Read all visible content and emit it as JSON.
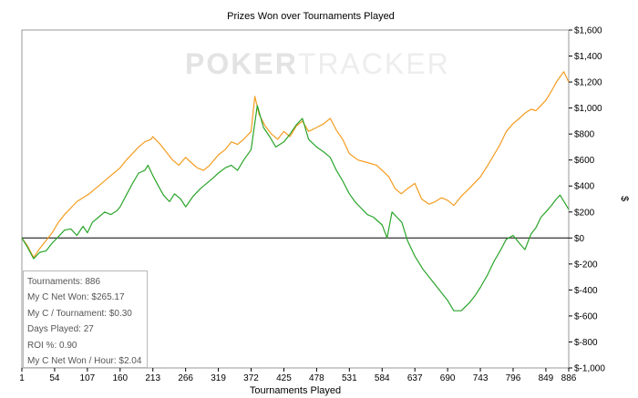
{
  "watermark": {
    "part1": "POKER",
    "part2": "TRACKER"
  },
  "chart_data": {
    "type": "line",
    "title": "Prizes Won over Tournaments Played",
    "xlabel": "Tournaments Played",
    "ylabel": "$",
    "xlim": [
      1,
      886
    ],
    "ylim": [
      -1000,
      1600
    ],
    "x_ticks": [
      1,
      54,
      107,
      160,
      213,
      266,
      319,
      372,
      425,
      478,
      531,
      584,
      637,
      690,
      743,
      796,
      849,
      886
    ],
    "y_ticks": [
      -1000,
      -800,
      -600,
      -400,
      -200,
      0,
      200,
      400,
      600,
      800,
      1000,
      1200,
      1400,
      1600
    ],
    "y_tick_labels": [
      "$-1,000",
      "$-800",
      "$-600",
      "$-400",
      "$-200",
      "$0",
      "$200",
      "$400",
      "$600",
      "$800",
      "$1,000",
      "$1,200",
      "$1,400",
      "$1,600"
    ],
    "grid": false,
    "series": [
      {
        "color": "#f39c1f",
        "points": [
          [
            1,
            0
          ],
          [
            10,
            -60
          ],
          [
            20,
            -150
          ],
          [
            30,
            -80
          ],
          [
            40,
            -20
          ],
          [
            50,
            40
          ],
          [
            60,
            120
          ],
          [
            70,
            180
          ],
          [
            80,
            230
          ],
          [
            90,
            280
          ],
          [
            100,
            310
          ],
          [
            110,
            340
          ],
          [
            120,
            380
          ],
          [
            130,
            420
          ],
          [
            140,
            460
          ],
          [
            150,
            500
          ],
          [
            160,
            540
          ],
          [
            170,
            600
          ],
          [
            180,
            650
          ],
          [
            190,
            700
          ],
          [
            200,
            740
          ],
          [
            210,
            760
          ],
          [
            213,
            780
          ],
          [
            225,
            720
          ],
          [
            235,
            660
          ],
          [
            245,
            600
          ],
          [
            255,
            560
          ],
          [
            266,
            620
          ],
          [
            275,
            580
          ],
          [
            285,
            540
          ],
          [
            295,
            520
          ],
          [
            305,
            560
          ],
          [
            319,
            640
          ],
          [
            330,
            680
          ],
          [
            340,
            740
          ],
          [
            350,
            720
          ],
          [
            360,
            760
          ],
          [
            372,
            820
          ],
          [
            378,
            1090
          ],
          [
            385,
            950
          ],
          [
            395,
            860
          ],
          [
            405,
            800
          ],
          [
            415,
            760
          ],
          [
            425,
            820
          ],
          [
            435,
            780
          ],
          [
            445,
            860
          ],
          [
            455,
            900
          ],
          [
            465,
            820
          ],
          [
            478,
            850
          ],
          [
            490,
            880
          ],
          [
            500,
            920
          ],
          [
            510,
            830
          ],
          [
            520,
            760
          ],
          [
            531,
            650
          ],
          [
            545,
            600
          ],
          [
            560,
            580
          ],
          [
            575,
            560
          ],
          [
            584,
            520
          ],
          [
            595,
            470
          ],
          [
            605,
            380
          ],
          [
            615,
            340
          ],
          [
            625,
            380
          ],
          [
            637,
            420
          ],
          [
            648,
            300
          ],
          [
            660,
            260
          ],
          [
            670,
            280
          ],
          [
            680,
            310
          ],
          [
            690,
            290
          ],
          [
            700,
            250
          ],
          [
            712,
            320
          ],
          [
            725,
            380
          ],
          [
            743,
            470
          ],
          [
            755,
            560
          ],
          [
            765,
            640
          ],
          [
            775,
            720
          ],
          [
            785,
            820
          ],
          [
            796,
            880
          ],
          [
            806,
            920
          ],
          [
            815,
            960
          ],
          [
            825,
            990
          ],
          [
            833,
            980
          ],
          [
            841,
            1020
          ],
          [
            849,
            1060
          ],
          [
            858,
            1130
          ],
          [
            866,
            1200
          ],
          [
            872,
            1240
          ],
          [
            878,
            1280
          ],
          [
            886,
            1200
          ]
        ]
      },
      {
        "color": "#2aa42a",
        "points": [
          [
            1,
            0
          ],
          [
            10,
            -70
          ],
          [
            20,
            -160
          ],
          [
            30,
            -110
          ],
          [
            40,
            -100
          ],
          [
            50,
            -40
          ],
          [
            60,
            10
          ],
          [
            70,
            60
          ],
          [
            80,
            70
          ],
          [
            90,
            20
          ],
          [
            100,
            90
          ],
          [
            107,
            40
          ],
          [
            115,
            120
          ],
          [
            125,
            160
          ],
          [
            135,
            200
          ],
          [
            145,
            180
          ],
          [
            155,
            210
          ],
          [
            160,
            240
          ],
          [
            170,
            330
          ],
          [
            180,
            420
          ],
          [
            190,
            500
          ],
          [
            200,
            520
          ],
          [
            205,
            560
          ],
          [
            213,
            480
          ],
          [
            222,
            400
          ],
          [
            230,
            330
          ],
          [
            240,
            280
          ],
          [
            248,
            340
          ],
          [
            258,
            300
          ],
          [
            266,
            240
          ],
          [
            278,
            320
          ],
          [
            290,
            380
          ],
          [
            300,
            420
          ],
          [
            310,
            460
          ],
          [
            319,
            500
          ],
          [
            330,
            540
          ],
          [
            340,
            560
          ],
          [
            350,
            520
          ],
          [
            360,
            600
          ],
          [
            372,
            680
          ],
          [
            382,
            1020
          ],
          [
            392,
            850
          ],
          [
            402,
            780
          ],
          [
            412,
            700
          ],
          [
            425,
            740
          ],
          [
            435,
            800
          ],
          [
            445,
            870
          ],
          [
            455,
            920
          ],
          [
            465,
            760
          ],
          [
            478,
            700
          ],
          [
            490,
            660
          ],
          [
            500,
            620
          ],
          [
            510,
            520
          ],
          [
            520,
            440
          ],
          [
            531,
            340
          ],
          [
            540,
            280
          ],
          [
            550,
            230
          ],
          [
            560,
            180
          ],
          [
            570,
            160
          ],
          [
            584,
            100
          ],
          [
            592,
            0
          ],
          [
            600,
            200
          ],
          [
            608,
            160
          ],
          [
            616,
            120
          ],
          [
            625,
            -20
          ],
          [
            637,
            -140
          ],
          [
            650,
            -240
          ],
          [
            660,
            -300
          ],
          [
            670,
            -360
          ],
          [
            680,
            -420
          ],
          [
            690,
            -480
          ],
          [
            700,
            -560
          ],
          [
            712,
            -560
          ],
          [
            725,
            -500
          ],
          [
            735,
            -440
          ],
          [
            743,
            -380
          ],
          [
            755,
            -280
          ],
          [
            765,
            -180
          ],
          [
            775,
            -100
          ],
          [
            785,
            -10
          ],
          [
            796,
            20
          ],
          [
            806,
            -40
          ],
          [
            815,
            -90
          ],
          [
            825,
            30
          ],
          [
            833,
            80
          ],
          [
            841,
            160
          ],
          [
            849,
            200
          ],
          [
            858,
            250
          ],
          [
            866,
            300
          ],
          [
            872,
            330
          ],
          [
            886,
            220
          ]
        ]
      }
    ]
  },
  "stats": [
    "Tournaments: 886",
    "My C Net Won: $265.17",
    "My C / Tournament: $0.30",
    "Days Played: 27",
    "ROI %: 0.90",
    "My C Net Won / Hour: $2.04"
  ]
}
